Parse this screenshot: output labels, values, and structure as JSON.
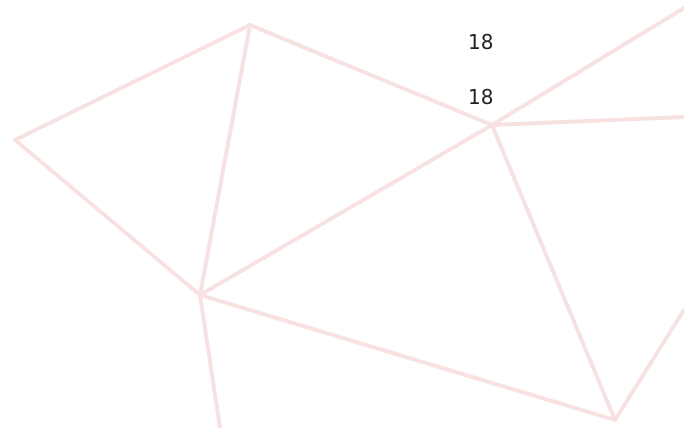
{
  "labels": [
    "18",
    "18"
  ]
}
